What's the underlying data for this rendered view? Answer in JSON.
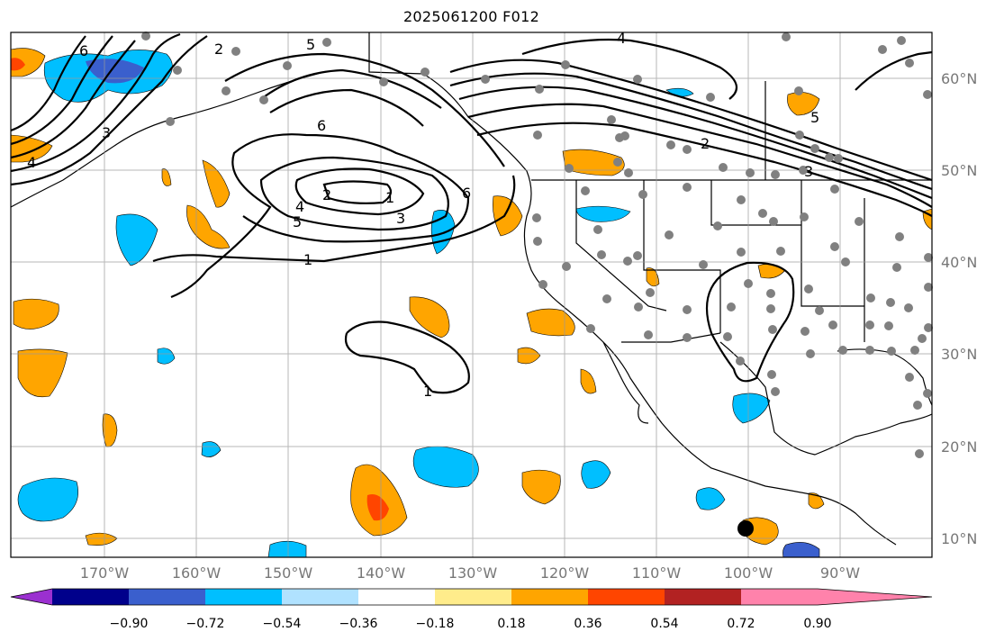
{
  "map": {
    "title": "2025061200 F012",
    "lon_labels": [
      "170°W",
      "160°W",
      "150°W",
      "140°W",
      "130°W",
      "120°W",
      "110°W",
      "100°W",
      "90°W"
    ],
    "lat_labels": [
      "60°N",
      "50°N",
      "40°N",
      "30°N",
      "20°N",
      "10°N"
    ],
    "contour_labels": [
      "6",
      "5",
      "4",
      "3",
      "2",
      "1",
      "6",
      "5",
      "4",
      "3",
      "2",
      "1",
      "1",
      "6",
      "5",
      "4",
      "3",
      "2"
    ],
    "colorbar": {
      "ticks": [
        "−0.90",
        "−0.72",
        "−0.54",
        "−0.36",
        "−0.18",
        "0.18",
        "0.36",
        "0.54",
        "0.72",
        "0.90"
      ],
      "colors": [
        "#9b30d0",
        "#00008b",
        "#3a5fcd",
        "#00bfff",
        "#b0e2ff",
        "#ffffff",
        "#ffec8b",
        "#ffa500",
        "#ff4500",
        "#b22222",
        "#ff82ab"
      ]
    }
  }
}
